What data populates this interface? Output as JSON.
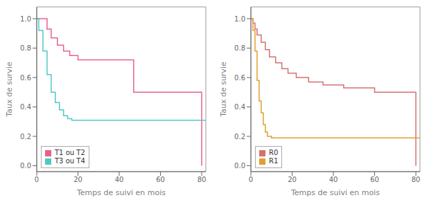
{
  "chart_data": [
    {
      "type": "step",
      "xlabel": "Temps de suivi en mois",
      "ylabel": "Taux de survie",
      "xlim": [
        0,
        82
      ],
      "ylim": [
        -0.04,
        1.08
      ],
      "xticks": [
        0,
        20,
        40,
        60,
        80
      ],
      "yticks": [
        {
          "value": 0,
          "label": "0.0"
        },
        0.2,
        0.4,
        0.6,
        0.8,
        {
          "value": 1,
          "label": "1.0"
        }
      ],
      "grid": false,
      "legend": "lower left",
      "series": [
        {
          "name": "T1 ou T2",
          "color": "#E8608A",
          "x": [
            0,
            3,
            5,
            7,
            10,
            13,
            16,
            20,
            45,
            47,
            80,
            80
          ],
          "values": [
            1.0,
            1.0,
            0.93,
            0.87,
            0.82,
            0.78,
            0.75,
            0.72,
            0.72,
            0.5,
            0.5,
            0.0
          ]
        },
        {
          "name": "T3 ou T4",
          "color": "#50C8C8",
          "x": [
            0,
            1,
            3,
            5,
            7,
            9,
            11,
            13,
            15,
            17,
            22,
            82
          ],
          "values": [
            1.0,
            0.92,
            0.78,
            0.62,
            0.5,
            0.43,
            0.38,
            0.34,
            0.32,
            0.31,
            0.31,
            0.31
          ]
        }
      ]
    },
    {
      "type": "step",
      "xlabel": "Temps de suivi en mois",
      "ylabel": "Taux de survie",
      "xlim": [
        0,
        82
      ],
      "ylim": [
        -0.04,
        1.08
      ],
      "xticks": [
        0,
        20,
        40,
        60,
        80
      ],
      "yticks": [
        {
          "value": 0,
          "label": "0.0"
        },
        0.2,
        0.4,
        0.6,
        0.8,
        {
          "value": 1,
          "label": "1.0"
        }
      ],
      "grid": false,
      "legend": "lower left",
      "series": [
        {
          "name": "R0",
          "color": "#D47070",
          "x": [
            0,
            1,
            2,
            3,
            5,
            7,
            9,
            12,
            15,
            18,
            22,
            28,
            35,
            45,
            60,
            80,
            80
          ],
          "values": [
            1.0,
            0.97,
            0.93,
            0.89,
            0.84,
            0.79,
            0.74,
            0.7,
            0.66,
            0.63,
            0.6,
            0.57,
            0.55,
            0.53,
            0.5,
            0.5,
            0.0
          ]
        },
        {
          "name": "R1",
          "color": "#E0A030",
          "x": [
            0,
            1,
            2,
            3,
            4,
            5,
            6,
            7,
            8,
            10,
            13,
            16,
            82
          ],
          "values": [
            1.0,
            0.92,
            0.78,
            0.58,
            0.44,
            0.36,
            0.28,
            0.23,
            0.2,
            0.19,
            0.19,
            0.19,
            0.19
          ]
        }
      ]
    }
  ]
}
